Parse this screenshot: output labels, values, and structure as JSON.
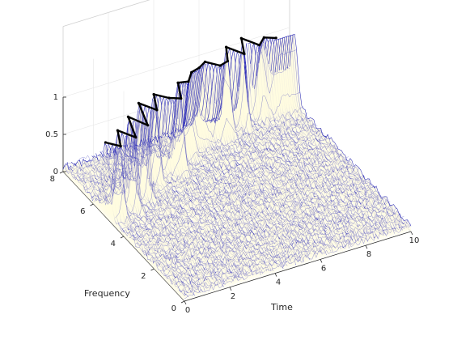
{
  "chart_data": {
    "type": "3d-surface-waterfall",
    "xlabel": "Time",
    "ylabel": "Frequency",
    "zlabel": "",
    "xlim": [
      0,
      10
    ],
    "ylim": [
      0,
      8
    ],
    "zlim": [
      0,
      1
    ],
    "x_ticks": [
      "0",
      "2",
      "4",
      "6",
      "8",
      "10"
    ],
    "y_ticks": [
      "0",
      "2",
      "4",
      "6",
      "8"
    ],
    "z_ticks": [
      "0",
      "0.5",
      "1"
    ],
    "grid": true,
    "mesh_color": "#2b2bb8",
    "face_color": "#fffbe0",
    "ridge_color": "#000000",
    "ridge": {
      "time": [
        0.0,
        0.4,
        0.8,
        1.2,
        1.6,
        2.0,
        2.4,
        2.8,
        3.2,
        3.6,
        4.0,
        4.4,
        4.8,
        5.2,
        5.6,
        6.0,
        6.4,
        6.8,
        7.2,
        7.6,
        8.0,
        8.4,
        8.8,
        9.2
      ],
      "frequency": [
        5.2,
        4.8,
        5.6,
        5.0,
        6.1,
        5.4,
        6.6,
        6.0,
        6.8,
        6.4,
        6.2,
        7.0,
        6.9,
        7.3,
        7.4,
        7.6,
        7.2,
        7.3,
        8.0,
        7.4,
        8.2,
        7.6,
        7.9,
        7.7
      ],
      "amplitude": [
        1.0,
        1.0,
        1.0,
        1.0,
        1.0,
        1.0,
        1.0,
        1.0,
        1.0,
        1.0,
        1.0,
        1.0,
        1.0,
        1.0,
        1.0,
        1.0,
        1.0,
        1.0,
        1.0,
        1.0,
        1.0,
        1.0,
        1.0,
        1.0
      ]
    },
    "noise_floor": 0.1
  }
}
